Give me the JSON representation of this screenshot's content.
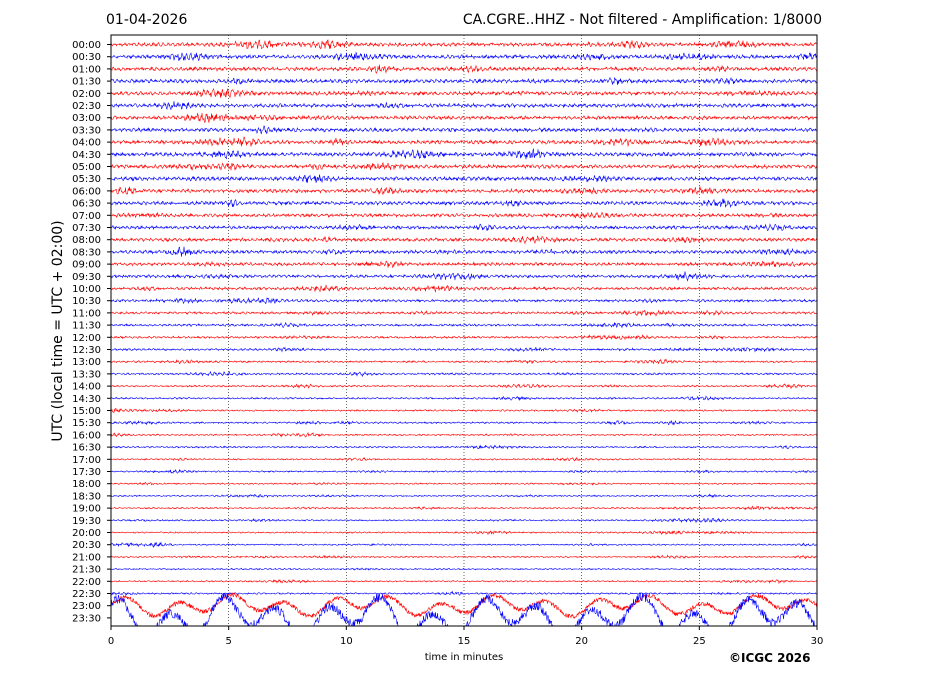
{
  "header": {
    "date": "01-04-2026",
    "title": "CA.CGRE..HHZ - Not filtered - Amplification: 1/8000"
  },
  "footer": {
    "copyright": "©ICGC 2026"
  },
  "colors": {
    "trace_a": "#ff0000",
    "trace_b": "#0000ff",
    "grid": "#000000",
    "background": "#ffffff"
  },
  "chart_data": {
    "type": "line",
    "title": "CA.CGRE..HHZ - Not filtered - Amplification: 1/8000",
    "xlabel": "time in minutes",
    "ylabel": "UTC (local time = UTC + 02:00)",
    "xlim": [
      0,
      30
    ],
    "x_ticks": [
      "0",
      "5",
      "10",
      "15",
      "20",
      "25",
      "30"
    ],
    "grid": "vertical dotted lines every 5 minutes",
    "row_labels": [
      "00:00",
      "00:30",
      "01:00",
      "01:30",
      "02:00",
      "02:30",
      "03:00",
      "03:30",
      "04:00",
      "04:30",
      "05:00",
      "05:30",
      "06:00",
      "06:30",
      "07:00",
      "07:30",
      "08:00",
      "08:30",
      "09:00",
      "09:30",
      "10:00",
      "10:30",
      "11:00",
      "11:30",
      "12:00",
      "12:30",
      "13:00",
      "13:30",
      "14:00",
      "14:30",
      "15:00",
      "15:30",
      "16:00",
      "16:30",
      "17:00",
      "17:30",
      "18:00",
      "18:30",
      "19:00",
      "19:30",
      "20:00",
      "20:30",
      "21:00",
      "21:30",
      "22:00",
      "22:30",
      "23:00",
      "23:30"
    ],
    "row_colors": [
      "#ff0000",
      "#0000ff"
    ],
    "relative_amplitude": [
      1.0,
      1.0,
      1.0,
      1.0,
      1.0,
      1.0,
      1.0,
      1.0,
      1.0,
      1.0,
      1.0,
      1.0,
      1.0,
      0.95,
      0.9,
      0.9,
      0.9,
      0.9,
      0.85,
      0.8,
      0.75,
      0.7,
      0.65,
      0.6,
      0.55,
      0.55,
      0.5,
      0.5,
      0.45,
      0.45,
      0.45,
      0.45,
      0.45,
      0.45,
      0.4,
      0.4,
      0.4,
      0.4,
      0.4,
      0.4,
      0.4,
      0.4,
      0.4,
      0.4,
      0.4,
      0.45,
      2.5,
      5.0
    ]
  }
}
